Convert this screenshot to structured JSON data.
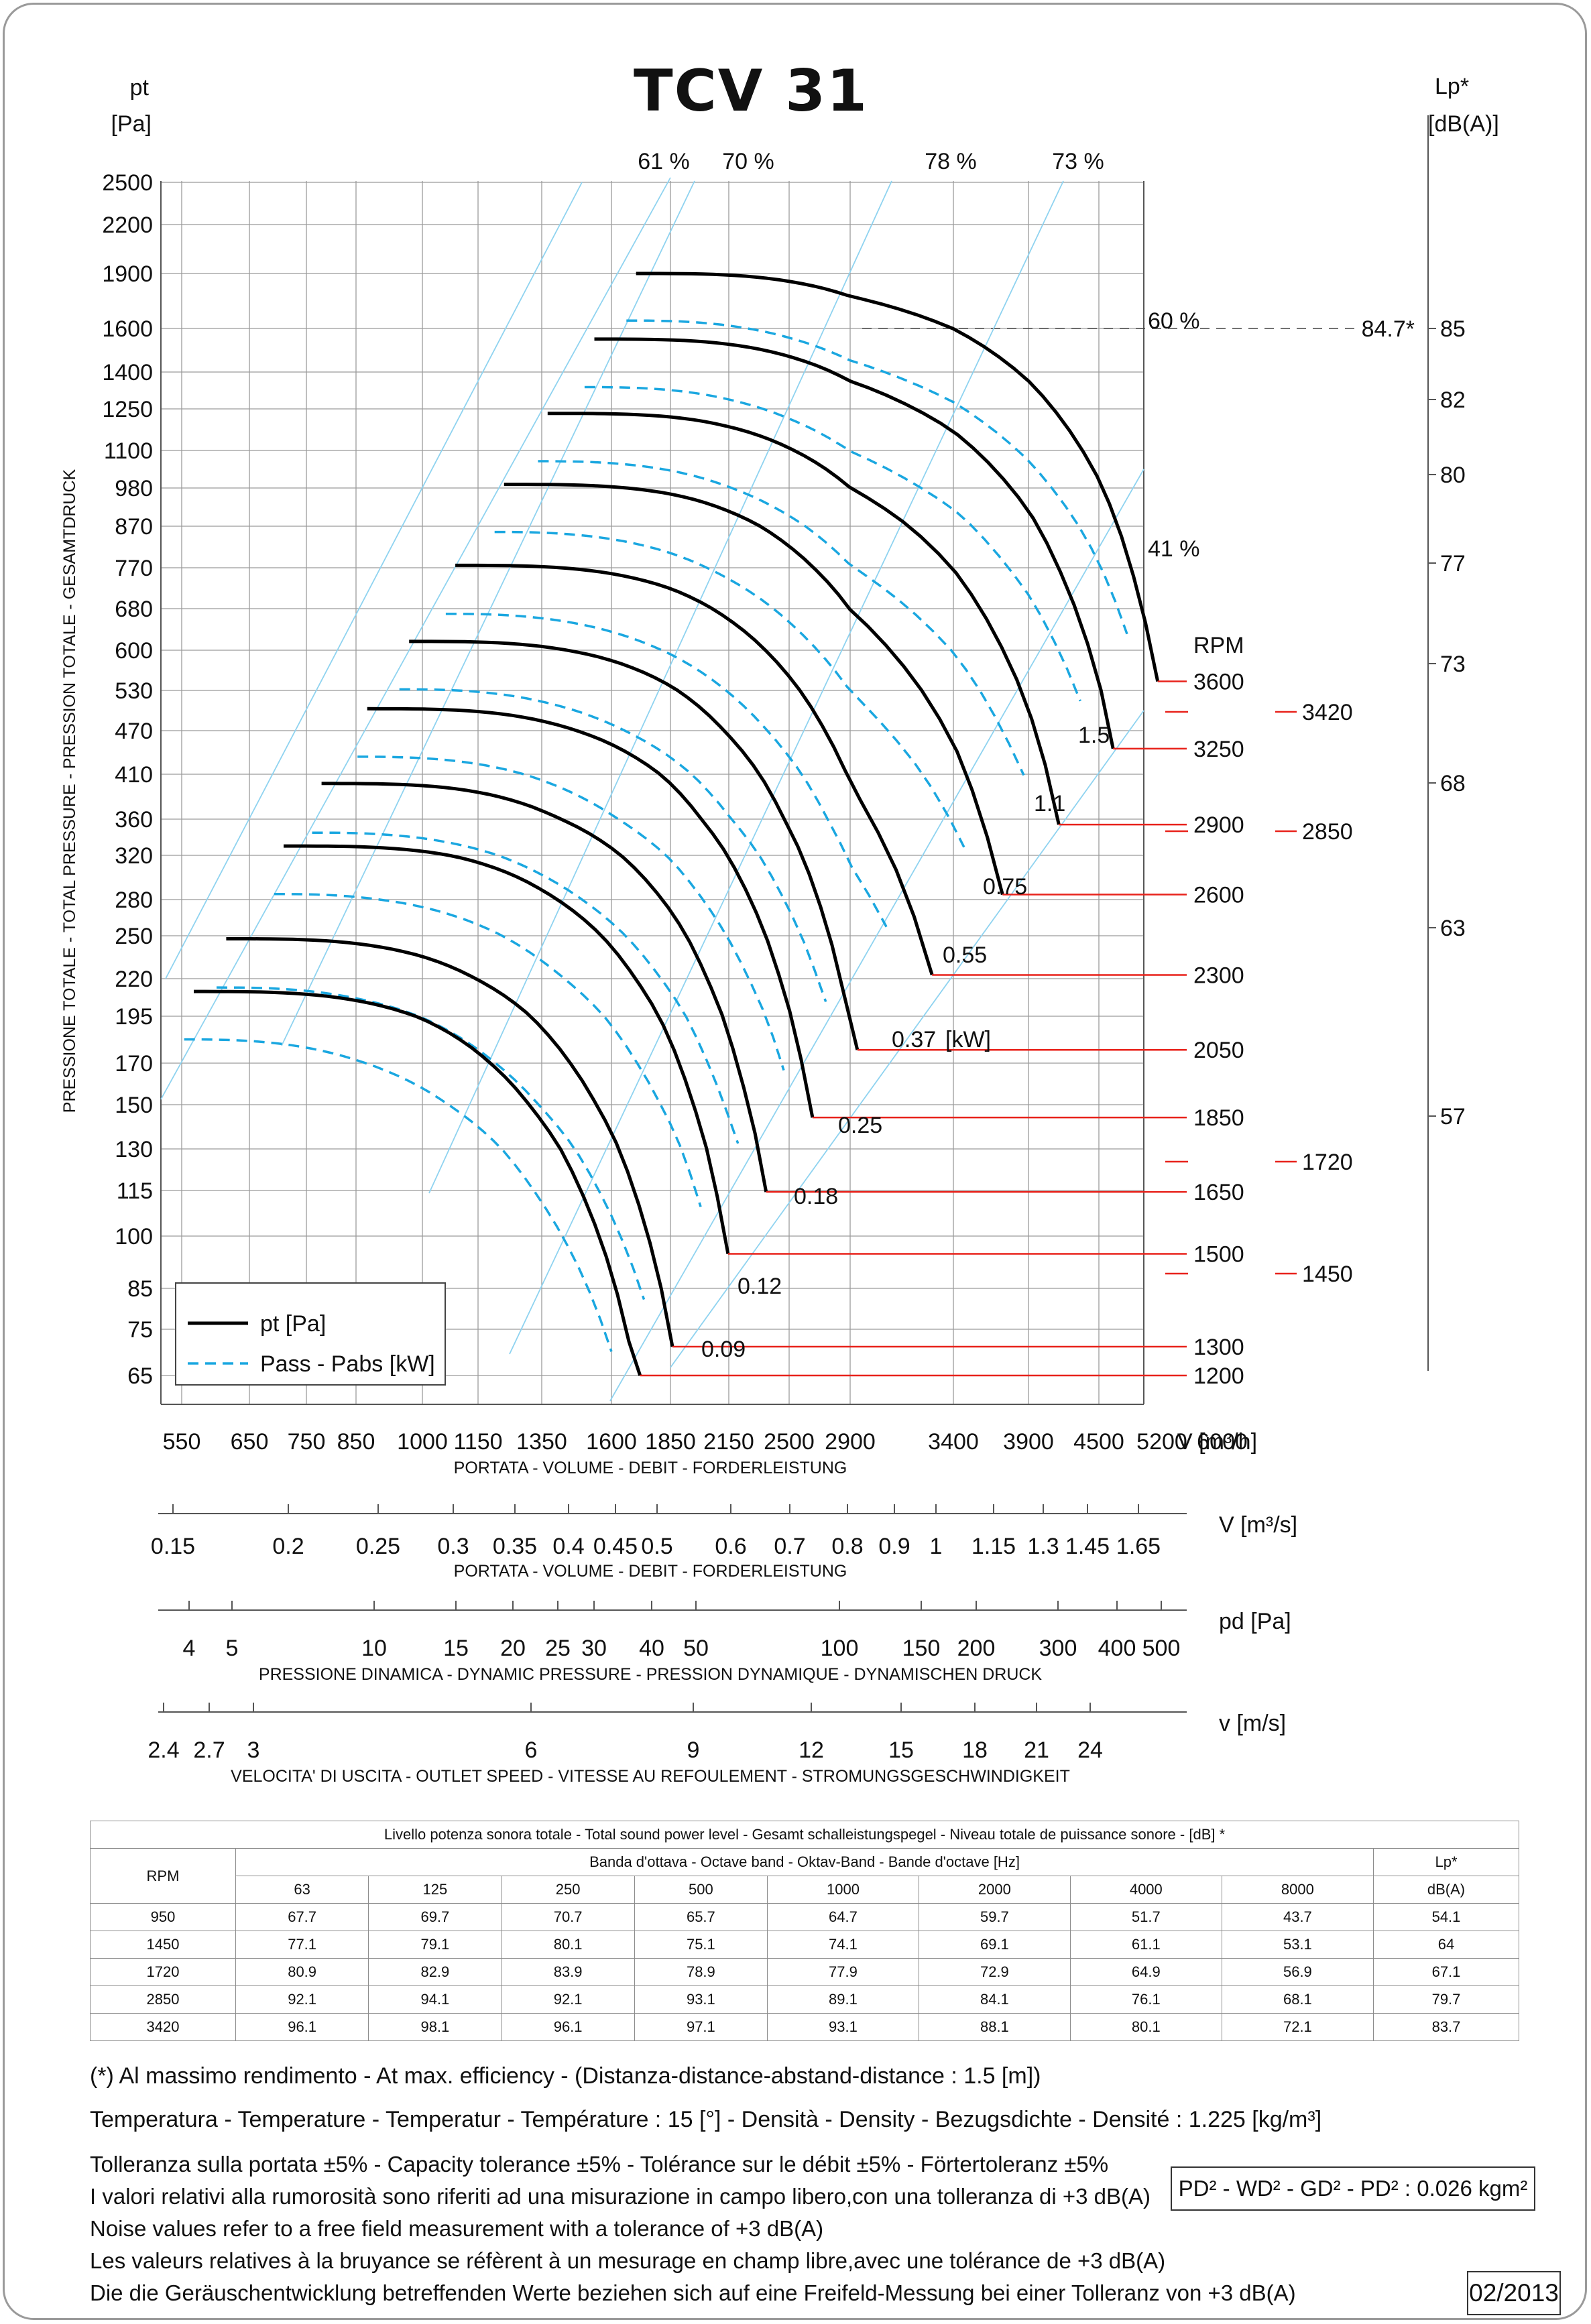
{
  "title": "TCV 31",
  "chart_data": {
    "type": "line",
    "y_left_label": [
      "pt",
      "[Pa]"
    ],
    "y_right_label": [
      "Lp*",
      "[dB(A)]"
    ],
    "y_axis_title": "PRESSIONE TOTALE - TOTAL PRESSURE - PRESSION TOTALE - GESAMTDRUCK",
    "y_ticks": [
      2500,
      2200,
      1900,
      1600,
      1400,
      1250,
      1100,
      980,
      870,
      770,
      680,
      600,
      530,
      470,
      410,
      360,
      320,
      280,
      250,
      220,
      195,
      170,
      150,
      130,
      115,
      100,
      85,
      75,
      65
    ],
    "x_ticks": [
      550,
      650,
      750,
      850,
      1000,
      1150,
      1350,
      1600,
      1850,
      2150,
      2500,
      2900,
      3400,
      3900,
      4500,
      5200,
      6000
    ],
    "x_unit_label": "V [m³/h]",
    "x_axis_title": "PORTATA - VOLUME - DEBIT - FORDERLEISTUNG",
    "lp_ticks": [
      "85",
      "82",
      "80",
      "77",
      "73",
      "68",
      "63",
      "57"
    ],
    "lp_max_label": "84.7*",
    "efficiency_labels": [
      "61 %",
      "70 %",
      "78 %",
      "73 %",
      "60 %",
      "41 %"
    ],
    "rpm_header": "RPM",
    "rpm_curves": [
      "3600",
      "3250",
      "2900",
      "2600",
      "2300",
      "2050",
      "1850",
      "1650",
      "1500",
      "1300",
      "1200"
    ],
    "rpm_extra": [
      "3420",
      "2850",
      "1720",
      "1450"
    ],
    "power_labels": [
      "1.5",
      "1.1",
      "0.75",
      "0.55",
      "0.37",
      "0.25",
      "0.18",
      "0.12",
      "0.09"
    ],
    "power_unit": "[kW]",
    "series": [
      {
        "name": "pt [Pa]",
        "color": "#000000",
        "style": "solid"
      },
      {
        "name": "Pass - Pabs [kW]",
        "color": "#1aa7e0",
        "style": "dashed"
      }
    ],
    "scale_m3s": {
      "label": "V  [m³/s]",
      "title": "PORTATA - VOLUME - DEBIT - FORDERLEISTUNG",
      "ticks": [
        "0.15",
        "0.2",
        "0.25",
        "0.3",
        "0.35",
        "0.4",
        "0.45",
        "0.5",
        "0.6",
        "0.7",
        "0.8",
        "0.9",
        "1",
        "1.15",
        "1.3",
        "1.45",
        "1.65"
      ]
    },
    "scale_pd": {
      "label": "pd  [Pa]",
      "title": "PRESSIONE DINAMICA - DYNAMIC PRESSURE - PRESSION DYNAMIQUE - DYNAMISCHEN DRUCK",
      "ticks": [
        "4",
        "5",
        "10",
        "15",
        "20",
        "25",
        "30",
        "40",
        "50",
        "100",
        "150",
        "200",
        "300",
        "400",
        "500"
      ]
    },
    "scale_v": {
      "label": "v  [m/s]",
      "title": "VELOCITA' DI USCITA - OUTLET SPEED - VITESSE AU REFOULEMENT - STROMUNGSGESCHWINDIGKEIT",
      "ticks": [
        "2.4",
        "2.7",
        "3",
        "6",
        "9",
        "12",
        "15",
        "18",
        "21",
        "24"
      ]
    }
  },
  "sound_table": {
    "caption": "Livello potenza sonora totale - Total sound power level - Gesamt schalleistungspegel - Niveau totale de puissance sonore - [dB]   *",
    "band_caption": "Banda d'ottava - Octave band - Oktav-Band - Bande d'octave [Hz]",
    "rpm_header": "RPM",
    "lp_header": "Lp*",
    "lp_unit": "dB(A)",
    "bands": [
      "63",
      "125",
      "250",
      "500",
      "1000",
      "2000",
      "4000",
      "8000"
    ],
    "rows": [
      {
        "rpm": "950",
        "values": [
          "67.7",
          "69.7",
          "70.7",
          "65.7",
          "64.7",
          "59.7",
          "51.7",
          "43.7"
        ],
        "lp": "54.1"
      },
      {
        "rpm": "1450",
        "values": [
          "77.1",
          "79.1",
          "80.1",
          "75.1",
          "74.1",
          "69.1",
          "61.1",
          "53.1"
        ],
        "lp": "64"
      },
      {
        "rpm": "1720",
        "values": [
          "80.9",
          "82.9",
          "83.9",
          "78.9",
          "77.9",
          "72.9",
          "64.9",
          "56.9"
        ],
        "lp": "67.1"
      },
      {
        "rpm": "2850",
        "values": [
          "92.1",
          "94.1",
          "92.1",
          "93.1",
          "89.1",
          "84.1",
          "76.1",
          "68.1"
        ],
        "lp": "79.7"
      },
      {
        "rpm": "3420",
        "values": [
          "96.1",
          "98.1",
          "96.1",
          "97.1",
          "93.1",
          "88.1",
          "80.1",
          "72.1"
        ],
        "lp": "83.7"
      }
    ]
  },
  "notes": {
    "efficiency_note": "(*) Al massimo rendimento - At max. efficiency - (Distanza-distance-abstand-distance : 1.5 [m])",
    "conditions": "Temperatura - Temperature - Temperatur - Température : 15 [°]  -  Densità - Density - Bezugsdichte - Densité : 1.225 [kg/m³]",
    "tolerance_lines": [
      "Tolleranza sulla portata  ±5% - Capacity tolerance ±5% - Tolérance sur le débit ±5% - Förtertoleranz ±5%",
      "I valori relativi alla rumorosità sono riferiti ad una misurazione in campo libero,con una tolleranza di +3 dB(A)",
      "Noise values refer to a free field measurement with a tolerance of +3 dB(A)",
      "Les valeurs relatives à la bruyance se réfèrent à un mesurage en champ libre,avec une tolérance de +3 dB(A)",
      "Die die Geräuschentwicklung betreffenden Werte beziehen sich auf eine Freifeld-Messung bei einer Tolleranz von +3 dB(A)"
    ],
    "inertia": "PD² -  WD² - GD² -  PD²  :  0.026 kgm²",
    "date": "02/2013"
  },
  "colors": {
    "curve": "#000000",
    "power_curve": "#1aa7e0",
    "rpm_marker": "#e8221b",
    "grid": "#9b9b9b",
    "efficiency_line": "#8fd3f0"
  }
}
